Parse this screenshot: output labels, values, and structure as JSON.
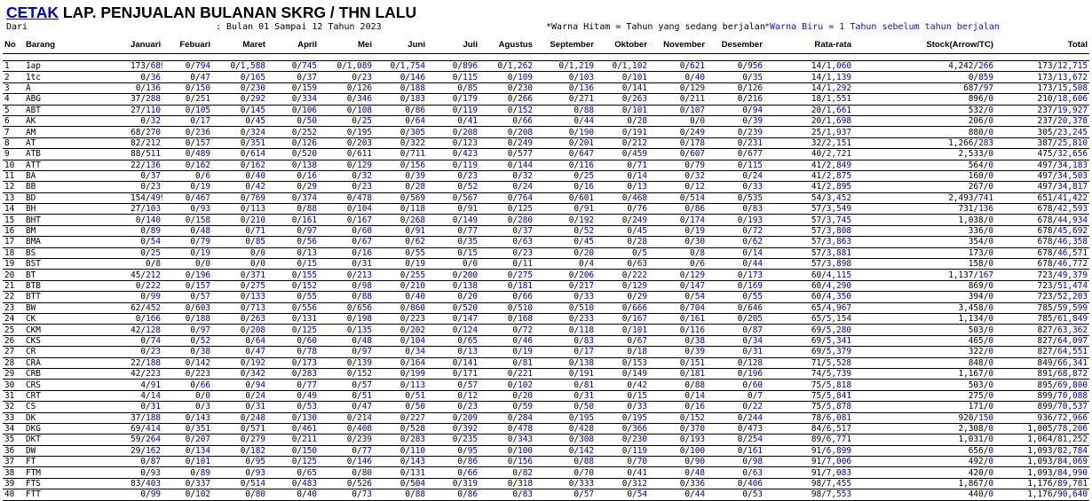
{
  "header": {
    "title_link": "CETAK",
    "title_rest": " LAP. PENJUALAN BULANAN SKRG / THN LALU",
    "dari_label": "Dari",
    "period": ": Bulan 01 Sampai 12 Tahun 2023",
    "note_black": "*Warna Hitam = Tahun yang sedang berjalan",
    "note_blue": "*Warna Biru = 1 Tahun sebelum tahun berjalan"
  },
  "columns": [
    "No",
    "Barang",
    "Januari",
    "Febuari",
    "Maret",
    "April",
    "Mei",
    "Juni",
    "Juli",
    "Agustus",
    "September",
    "Oktober",
    "November",
    "Desember",
    "Rata-rata",
    "Stock(Arrow/TC)",
    "Total"
  ],
  "rows": [
    [
      "1",
      "1ap",
      "173/689",
      "0/794",
      "0/1,588",
      "0/745",
      "0/1,089",
      "0/1,754",
      "0/896",
      "0/1,262",
      "0/1,219",
      "0/1,102",
      "0/621",
      "0/956",
      "14/1,060",
      "4,242/266",
      "173/12,715"
    ],
    [
      "2",
      "1tc",
      "0/36",
      "0/47",
      "0/165",
      "0/37",
      "0/23",
      "0/146",
      "0/115",
      "0/109",
      "0/103",
      "0/101",
      "0/40",
      "0/35",
      "14/1,139",
      "0/859",
      "173/13,672"
    ],
    [
      "3",
      "A",
      "0/136",
      "0/150",
      "0/230",
      "0/159",
      "0/126",
      "0/188",
      "0/85",
      "0/230",
      "0/136",
      "0/141",
      "0/129",
      "0/126",
      "14/1,292",
      "687/97",
      "173/15,508"
    ],
    [
      "4",
      "ABG",
      "37/288",
      "0/251",
      "0/292",
      "0/334",
      "0/346",
      "0/183",
      "0/179",
      "0/266",
      "0/271",
      "0/263",
      "0/211",
      "0/216",
      "18/1,551",
      "896/0",
      "210/18,606"
    ],
    [
      "5",
      "ABT",
      "27/110",
      "0/105",
      "0/145",
      "0/106",
      "0/108",
      "0/86",
      "0/119",
      "0/152",
      "0/88",
      "0/101",
      "0/107",
      "0/94",
      "20/1,661",
      "532/0",
      "237/19,927"
    ],
    [
      "6",
      "AK",
      "0/32",
      "0/17",
      "0/45",
      "0/50",
      "0/25",
      "0/64",
      "0/41",
      "0/66",
      "0/44",
      "0/28",
      "0/0",
      "0/39",
      "20/1,698",
      "206/0",
      "237/20,378"
    ],
    [
      "7",
      "AM",
      "68/270",
      "0/236",
      "0/324",
      "0/252",
      "0/195",
      "0/305",
      "0/208",
      "0/208",
      "0/190",
      "0/191",
      "0/249",
      "0/239",
      "25/1,937",
      "880/0",
      "305/23,245"
    ],
    [
      "8",
      "AT",
      "82/212",
      "0/157",
      "0/351",
      "0/126",
      "0/203",
      "0/322",
      "0/123",
      "0/249",
      "0/201",
      "0/212",
      "0/178",
      "0/231",
      "32/2,151",
      "1,266/283",
      "387/25,810"
    ],
    [
      "9",
      "ATB",
      "88/511",
      "0/489",
      "0/614",
      "0/520",
      "0/611",
      "0/711",
      "0/423",
      "0/577",
      "0/647",
      "0/459",
      "0/607",
      "0/677",
      "40/2,721",
      "2,533/0",
      "475/32,656"
    ],
    [
      "10",
      "ATT",
      "22/136",
      "0/162",
      "0/162",
      "0/138",
      "0/129",
      "0/156",
      "0/119",
      "0/144",
      "0/116",
      "0/71",
      "0/79",
      "0/115",
      "41/2,849",
      "564/0",
      "497/34,183"
    ],
    [
      "11",
      "BA",
      "0/37",
      "0/6",
      "0/40",
      "0/16",
      "0/32",
      "0/39",
      "0/23",
      "0/32",
      "0/25",
      "0/14",
      "0/32",
      "0/24",
      "41/2,875",
      "160/0",
      "497/34,503"
    ],
    [
      "12",
      "BB",
      "0/23",
      "0/19",
      "0/42",
      "0/29",
      "0/23",
      "0/28",
      "0/52",
      "0/24",
      "0/16",
      "0/13",
      "0/12",
      "0/33",
      "41/2,895",
      "267/0",
      "497/34,817"
    ],
    [
      "13",
      "BD",
      "154/499",
      "0/467",
      "0/769",
      "0/374",
      "0/478",
      "0/569",
      "0/567",
      "0/764",
      "0/601",
      "0/468",
      "0/514",
      "0/535",
      "54/3,452",
      "2,493/741",
      "651/41,422"
    ],
    [
      "14",
      "BH",
      "27/103",
      "0/93",
      "0/113",
      "0/88",
      "0/104",
      "0/118",
      "0/91",
      "0/125",
      "0/91",
      "0/76",
      "0/86",
      "0/83",
      "57/3,549",
      "731/136",
      "678/42,593"
    ],
    [
      "15",
      "BHT",
      "0/140",
      "0/158",
      "0/210",
      "0/161",
      "0/167",
      "0/268",
      "0/149",
      "0/280",
      "0/192",
      "0/249",
      "0/174",
      "0/193",
      "57/3,745",
      "1,038/0",
      "678/44,934"
    ],
    [
      "16",
      "BM",
      "0/89",
      "0/48",
      "0/71",
      "0/97",
      "0/60",
      "0/91",
      "0/77",
      "0/37",
      "0/52",
      "0/45",
      "0/19",
      "0/72",
      "57/3,808",
      "336/0",
      "678/45,692"
    ],
    [
      "17",
      "BMA",
      "0/54",
      "0/79",
      "0/85",
      "0/56",
      "0/67",
      "0/62",
      "0/35",
      "0/63",
      "0/45",
      "0/28",
      "0/30",
      "0/62",
      "57/3,863",
      "354/0",
      "678/46,358"
    ],
    [
      "18",
      "BS",
      "0/25",
      "0/19",
      "0/0",
      "0/13",
      "0/16",
      "0/55",
      "0/15",
      "0/23",
      "0/20",
      "0/5",
      "0/8",
      "0/14",
      "57/3,881",
      "173/0",
      "678/46,571"
    ],
    [
      "19",
      "BST",
      "0/8",
      "0/0",
      "0/0",
      "0/15",
      "0/31",
      "0/19",
      "0/0",
      "0/11",
      "0/4",
      "0/63",
      "0/6",
      "0/44",
      "57/3,898",
      "158/0",
      "678/46,772"
    ],
    [
      "20",
      "BT",
      "45/212",
      "0/196",
      "0/371",
      "0/155",
      "0/213",
      "0/255",
      "0/200",
      "0/275",
      "0/206",
      "0/222",
      "0/129",
      "0/173",
      "60/4,115",
      "1,137/167",
      "723/49,379"
    ],
    [
      "21",
      "BTB",
      "0/222",
      "0/157",
      "0/275",
      "0/152",
      "0/98",
      "0/210",
      "0/138",
      "0/181",
      "0/217",
      "0/129",
      "0/147",
      "0/169",
      "60/4,290",
      "869/0",
      "723/51,474"
    ],
    [
      "22",
      "BTT",
      "0/99",
      "0/57",
      "0/133",
      "0/55",
      "0/88",
      "0/40",
      "0/20",
      "0/66",
      "0/33",
      "0/29",
      "0/54",
      "0/55",
      "60/4,350",
      "394/0",
      "723/52,203"
    ],
    [
      "23",
      "BW",
      "62/452",
      "0/603",
      "0/713",
      "0/556",
      "0/656",
      "0/860",
      "0/520",
      "0/510",
      "0/510",
      "0/666",
      "0/704",
      "0/646",
      "65/4,967",
      "3,458/0",
      "785/59,599"
    ],
    [
      "24",
      "CK",
      "0/166",
      "0/188",
      "0/263",
      "0/131",
      "0/198",
      "0/223",
      "0/147",
      "0/168",
      "0/233",
      "0/167",
      "0/161",
      "0/205",
      "65/5,154",
      "1,134/0",
      "785/61,849"
    ],
    [
      "25",
      "CKM",
      "42/128",
      "0/97",
      "0/208",
      "0/125",
      "0/135",
      "0/202",
      "0/124",
      "0/72",
      "0/118",
      "0/101",
      "0/116",
      "0/87",
      "69/5,280",
      "503/0",
      "827/63,362"
    ],
    [
      "26",
      "CKS",
      "0/74",
      "0/52",
      "0/64",
      "0/60",
      "0/48",
      "0/104",
      "0/65",
      "0/46",
      "0/83",
      "0/67",
      "0/38",
      "0/34",
      "69/5,341",
      "465/0",
      "827/64,097"
    ],
    [
      "27",
      "CR",
      "0/23",
      "0/38",
      "0/47",
      "0/78",
      "0/97",
      "0/34",
      "0/13",
      "0/19",
      "0/17",
      "0/18",
      "0/39",
      "0/31",
      "69/5,379",
      "322/0",
      "827/64,551"
    ],
    [
      "28",
      "CRA",
      "22/188",
      "0/142",
      "0/192",
      "0/173",
      "0/139",
      "0/164",
      "0/141",
      "0/81",
      "0/138",
      "0/153",
      "0/151",
      "0/128",
      "71/5,528",
      "848/0",
      "849/66,341"
    ],
    [
      "29",
      "CRB",
      "42/223",
      "0/223",
      "0/342",
      "0/283",
      "0/152",
      "0/199",
      "0/171",
      "0/221",
      "0/191",
      "0/149",
      "0/181",
      "0/196",
      "74/5,739",
      "1,167/0",
      "891/68,872"
    ],
    [
      "30",
      "CRS",
      "4/91",
      "0/66",
      "0/94",
      "0/77",
      "0/57",
      "0/113",
      "0/57",
      "0/102",
      "0/81",
      "0/42",
      "0/88",
      "0/60",
      "75/5,818",
      "503/0",
      "895/69,800"
    ],
    [
      "31",
      "CRT",
      "4/14",
      "0/0",
      "0/24",
      "0/49",
      "0/51",
      "0/51",
      "0/12",
      "0/20",
      "0/31",
      "0/15",
      "0/14",
      "0/7",
      "75/5,841",
      "275/0",
      "899/70,088"
    ],
    [
      "32",
      "CS",
      "0/31",
      "0/3",
      "0/31",
      "0/53",
      "0/47",
      "0/50",
      "0/23",
      "0/59",
      "0/50",
      "0/33",
      "0/16",
      "0/22",
      "75/5,878",
      "171/0",
      "899/70,537"
    ],
    [
      "33",
      "DK",
      "37/188",
      "0/143",
      "0/248",
      "0/130",
      "0/214",
      "0/227",
      "0/209",
      "0/284",
      "0/195",
      "0/195",
      "0/152",
      "0/244",
      "78/6,081",
      "920/150",
      "936/72,966"
    ],
    [
      "34",
      "DKG",
      "69/414",
      "0/351",
      "0/571",
      "0/461",
      "0/408",
      "0/528",
      "0/392",
      "0/478",
      "0/428",
      "0/366",
      "0/370",
      "0/473",
      "84/6,517",
      "2,308/0",
      "1,005/78,206"
    ],
    [
      "35",
      "DKT",
      "59/264",
      "0/207",
      "0/279",
      "0/211",
      "0/239",
      "0/283",
      "0/235",
      "0/343",
      "0/308",
      "0/230",
      "0/193",
      "0/254",
      "89/6,771",
      "1,031/0",
      "1,064/81,252"
    ],
    [
      "36",
      "DW",
      "29/162",
      "0/134",
      "0/182",
      "0/150",
      "0/77",
      "0/110",
      "0/95",
      "0/100",
      "0/142",
      "0/119",
      "0/100",
      "0/161",
      "91/6,899",
      "656/0",
      "1,093/82,784"
    ],
    [
      "37",
      "FT",
      "0/87",
      "0/101",
      "0/95",
      "0/125",
      "0/146",
      "0/143",
      "0/86",
      "0/156",
      "0/88",
      "0/70",
      "0/90",
      "0/98",
      "91/7,006",
      "492/0",
      "1,093/84,069"
    ],
    [
      "38",
      "FTM",
      "0/93",
      "0/89",
      "0/93",
      "0/65",
      "0/80",
      "0/131",
      "0/66",
      "0/82",
      "0/70",
      "0/41",
      "0/48",
      "0/63",
      "91/7,083",
      "420/0",
      "1,093/84,990"
    ],
    [
      "39",
      "FTS",
      "83/403",
      "0/337",
      "0/514",
      "0/483",
      "0/526",
      "0/504",
      "0/319",
      "0/318",
      "0/333",
      "0/312",
      "0/336",
      "0/406",
      "98/7,455",
      "1,867/0",
      "1,176/89,781"
    ],
    [
      "40",
      "FTT",
      "0/99",
      "0/102",
      "0/80",
      "0/40",
      "0/73",
      "0/88",
      "0/86",
      "0/83",
      "0/57",
      "0/54",
      "0/44",
      "0/53",
      "98/7,553",
      "440/0",
      "1,176/90,640"
    ]
  ]
}
